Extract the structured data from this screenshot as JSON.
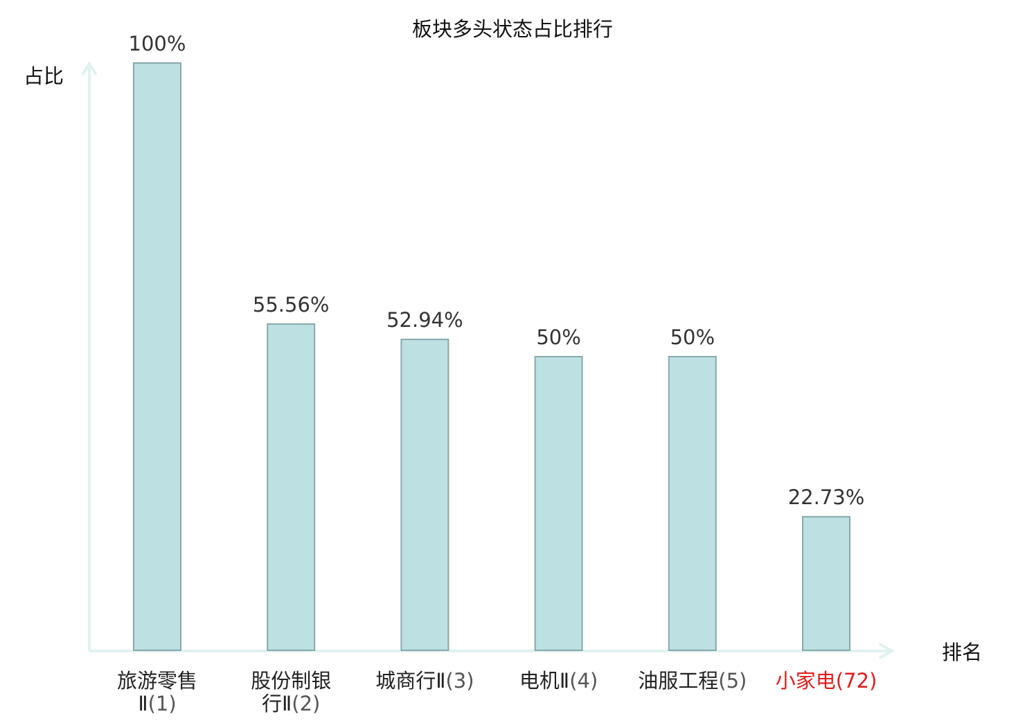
{
  "chart_data": {
    "type": "bar",
    "title": "板块多头状态占比排行",
    "ylabel": "占比",
    "xlabel": "排名",
    "ylim": [
      0,
      100
    ],
    "categories": [
      {
        "name": "旅游零售Ⅱ",
        "rank": "(1)",
        "highlight": false
      },
      {
        "name": "股份制银行Ⅱ",
        "rank": "(2)",
        "highlight": false
      },
      {
        "name": "城商行Ⅱ",
        "rank": "(3)",
        "highlight": false
      },
      {
        "name": "电机Ⅱ",
        "rank": "(4)",
        "highlight": false
      },
      {
        "name": "油服工程",
        "rank": "(5)",
        "highlight": false
      },
      {
        "name": "小家电",
        "rank": "(72)",
        "highlight": true
      }
    ],
    "values": [
      100,
      55.56,
      52.94,
      50,
      50,
      22.73
    ],
    "value_labels": [
      "100%",
      "55.56%",
      "52.94%",
      "50%",
      "50%",
      "22.73%"
    ],
    "grid": false,
    "legend": "none"
  },
  "colors": {
    "bar_fill": "#bde0e2",
    "bar_stroke": "#87a8ab",
    "axis": "#e0f2f1",
    "text": "#222222",
    "rank_text": "#555555",
    "value_text": "#333333",
    "highlight": "#e21d1d"
  }
}
